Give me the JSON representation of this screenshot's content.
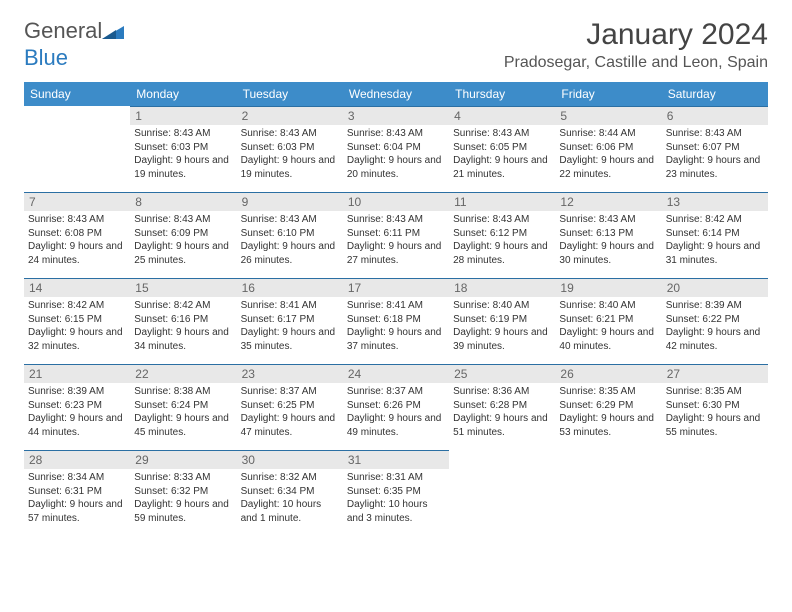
{
  "logo": {
    "text_a": "General",
    "text_b": "Blue"
  },
  "title": "January 2024",
  "location": "Pradosegar, Castille and Leon, Spain",
  "colors": {
    "header_bg": "#3d8cc9",
    "header_text": "#ffffff",
    "daynum_bg": "#e8e8e8",
    "daynum_border": "#2b6fa3",
    "logo_blue": "#2b7bbf",
    "body_text": "#333333"
  },
  "typography": {
    "month_title_size": 30,
    "location_size": 16,
    "weekday_size": 12,
    "daynum_size": 12,
    "cell_text_size": 10
  },
  "weekdays": [
    "Sunday",
    "Monday",
    "Tuesday",
    "Wednesday",
    "Thursday",
    "Friday",
    "Saturday"
  ],
  "weeks": [
    [
      {
        "day": "",
        "sunrise": "",
        "sunset": "",
        "daylight": ""
      },
      {
        "day": "1",
        "sunrise": "Sunrise: 8:43 AM",
        "sunset": "Sunset: 6:03 PM",
        "daylight": "Daylight: 9 hours and 19 minutes."
      },
      {
        "day": "2",
        "sunrise": "Sunrise: 8:43 AM",
        "sunset": "Sunset: 6:03 PM",
        "daylight": "Daylight: 9 hours and 19 minutes."
      },
      {
        "day": "3",
        "sunrise": "Sunrise: 8:43 AM",
        "sunset": "Sunset: 6:04 PM",
        "daylight": "Daylight: 9 hours and 20 minutes."
      },
      {
        "day": "4",
        "sunrise": "Sunrise: 8:43 AM",
        "sunset": "Sunset: 6:05 PM",
        "daylight": "Daylight: 9 hours and 21 minutes."
      },
      {
        "day": "5",
        "sunrise": "Sunrise: 8:44 AM",
        "sunset": "Sunset: 6:06 PM",
        "daylight": "Daylight: 9 hours and 22 minutes."
      },
      {
        "day": "6",
        "sunrise": "Sunrise: 8:43 AM",
        "sunset": "Sunset: 6:07 PM",
        "daylight": "Daylight: 9 hours and 23 minutes."
      }
    ],
    [
      {
        "day": "7",
        "sunrise": "Sunrise: 8:43 AM",
        "sunset": "Sunset: 6:08 PM",
        "daylight": "Daylight: 9 hours and 24 minutes."
      },
      {
        "day": "8",
        "sunrise": "Sunrise: 8:43 AM",
        "sunset": "Sunset: 6:09 PM",
        "daylight": "Daylight: 9 hours and 25 minutes."
      },
      {
        "day": "9",
        "sunrise": "Sunrise: 8:43 AM",
        "sunset": "Sunset: 6:10 PM",
        "daylight": "Daylight: 9 hours and 26 minutes."
      },
      {
        "day": "10",
        "sunrise": "Sunrise: 8:43 AM",
        "sunset": "Sunset: 6:11 PM",
        "daylight": "Daylight: 9 hours and 27 minutes."
      },
      {
        "day": "11",
        "sunrise": "Sunrise: 8:43 AM",
        "sunset": "Sunset: 6:12 PM",
        "daylight": "Daylight: 9 hours and 28 minutes."
      },
      {
        "day": "12",
        "sunrise": "Sunrise: 8:43 AM",
        "sunset": "Sunset: 6:13 PM",
        "daylight": "Daylight: 9 hours and 30 minutes."
      },
      {
        "day": "13",
        "sunrise": "Sunrise: 8:42 AM",
        "sunset": "Sunset: 6:14 PM",
        "daylight": "Daylight: 9 hours and 31 minutes."
      }
    ],
    [
      {
        "day": "14",
        "sunrise": "Sunrise: 8:42 AM",
        "sunset": "Sunset: 6:15 PM",
        "daylight": "Daylight: 9 hours and 32 minutes."
      },
      {
        "day": "15",
        "sunrise": "Sunrise: 8:42 AM",
        "sunset": "Sunset: 6:16 PM",
        "daylight": "Daylight: 9 hours and 34 minutes."
      },
      {
        "day": "16",
        "sunrise": "Sunrise: 8:41 AM",
        "sunset": "Sunset: 6:17 PM",
        "daylight": "Daylight: 9 hours and 35 minutes."
      },
      {
        "day": "17",
        "sunrise": "Sunrise: 8:41 AM",
        "sunset": "Sunset: 6:18 PM",
        "daylight": "Daylight: 9 hours and 37 minutes."
      },
      {
        "day": "18",
        "sunrise": "Sunrise: 8:40 AM",
        "sunset": "Sunset: 6:19 PM",
        "daylight": "Daylight: 9 hours and 39 minutes."
      },
      {
        "day": "19",
        "sunrise": "Sunrise: 8:40 AM",
        "sunset": "Sunset: 6:21 PM",
        "daylight": "Daylight: 9 hours and 40 minutes."
      },
      {
        "day": "20",
        "sunrise": "Sunrise: 8:39 AM",
        "sunset": "Sunset: 6:22 PM",
        "daylight": "Daylight: 9 hours and 42 minutes."
      }
    ],
    [
      {
        "day": "21",
        "sunrise": "Sunrise: 8:39 AM",
        "sunset": "Sunset: 6:23 PM",
        "daylight": "Daylight: 9 hours and 44 minutes."
      },
      {
        "day": "22",
        "sunrise": "Sunrise: 8:38 AM",
        "sunset": "Sunset: 6:24 PM",
        "daylight": "Daylight: 9 hours and 45 minutes."
      },
      {
        "day": "23",
        "sunrise": "Sunrise: 8:37 AM",
        "sunset": "Sunset: 6:25 PM",
        "daylight": "Daylight: 9 hours and 47 minutes."
      },
      {
        "day": "24",
        "sunrise": "Sunrise: 8:37 AM",
        "sunset": "Sunset: 6:26 PM",
        "daylight": "Daylight: 9 hours and 49 minutes."
      },
      {
        "day": "25",
        "sunrise": "Sunrise: 8:36 AM",
        "sunset": "Sunset: 6:28 PM",
        "daylight": "Daylight: 9 hours and 51 minutes."
      },
      {
        "day": "26",
        "sunrise": "Sunrise: 8:35 AM",
        "sunset": "Sunset: 6:29 PM",
        "daylight": "Daylight: 9 hours and 53 minutes."
      },
      {
        "day": "27",
        "sunrise": "Sunrise: 8:35 AM",
        "sunset": "Sunset: 6:30 PM",
        "daylight": "Daylight: 9 hours and 55 minutes."
      }
    ],
    [
      {
        "day": "28",
        "sunrise": "Sunrise: 8:34 AM",
        "sunset": "Sunset: 6:31 PM",
        "daylight": "Daylight: 9 hours and 57 minutes."
      },
      {
        "day": "29",
        "sunrise": "Sunrise: 8:33 AM",
        "sunset": "Sunset: 6:32 PM",
        "daylight": "Daylight: 9 hours and 59 minutes."
      },
      {
        "day": "30",
        "sunrise": "Sunrise: 8:32 AM",
        "sunset": "Sunset: 6:34 PM",
        "daylight": "Daylight: 10 hours and 1 minute."
      },
      {
        "day": "31",
        "sunrise": "Sunrise: 8:31 AM",
        "sunset": "Sunset: 6:35 PM",
        "daylight": "Daylight: 10 hours and 3 minutes."
      },
      {
        "day": "",
        "sunrise": "",
        "sunset": "",
        "daylight": ""
      },
      {
        "day": "",
        "sunrise": "",
        "sunset": "",
        "daylight": ""
      },
      {
        "day": "",
        "sunrise": "",
        "sunset": "",
        "daylight": ""
      }
    ]
  ]
}
